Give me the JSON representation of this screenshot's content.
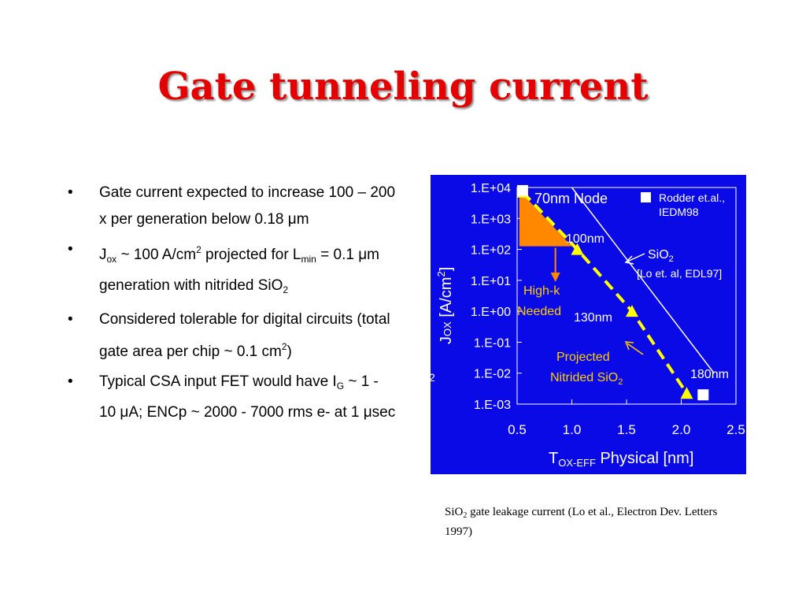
{
  "slide": {
    "title": "Gate tunneling current"
  },
  "bullets": [
    {
      "text_a": "Gate current expected to increase 100 – 200 x per generation below 0.18 ",
      "mu": "μ",
      "text_b": "m"
    },
    {
      "a": "J",
      "sub1": "ox",
      "b": " ~ 100 A/cm",
      "sup1": "2",
      "c": " projected for L",
      "sub2": "min",
      "d": " = 0.1 ",
      "mu": "μ",
      "e": "m generation with nitrided SiO",
      "sub3": "2"
    },
    {
      "a": "Considered tolerable for digital circuits (total gate area per chip ~ 0.1 cm",
      "sup1": "2",
      "b": ")"
    },
    {
      "a": "Typical CSA input FET would have I",
      "sub1": "G",
      "b": " ~ 1 - 10 ",
      "mu1": "μ",
      "c": "A; ENCp ~ 2000 - 7000 rms e- at 1 ",
      "mu2": "μ",
      "d": "sec"
    }
  ],
  "bullet_symbol": "•",
  "caption": {
    "a": "SiO",
    "sub": "2",
    "b": " gate leakage current (Lo et al., Electron Dev. Letters 1997)"
  },
  "chart_data": {
    "type": "line",
    "colors": {
      "background": "#0a0ae6",
      "text": "#ffffff",
      "yellow": "#ffff00",
      "orange": "#ff8800",
      "annotation": "#ffcc00"
    },
    "x_ticks": [
      "0.5",
      "1.0",
      "1.5",
      "2.0",
      "2.5"
    ],
    "y_ticks": [
      "1.E-03",
      "1.E-02",
      "1.E-01",
      "1.E+00",
      "1.E+01",
      "1.E+02",
      "1.E+03",
      "1.E+04"
    ],
    "xlim": [
      0.5,
      2.5
    ],
    "ylim_log10": [
      -3,
      4
    ],
    "xlabel": {
      "main": "T",
      "sub": "OX-EFF",
      "rest": " Physical  [nm]"
    },
    "ylabel": {
      "main": "J",
      "sub": "OX",
      "rest": " [A/cm",
      "sup": "2",
      "end": "]"
    },
    "series": [
      {
        "name": "SiO2 [Lo et. al, EDL97]",
        "x": [
          1.0,
          2.3
        ],
        "log10y": [
          4,
          -2
        ]
      },
      {
        "name": "Projected Nitrided SiO2",
        "x": [
          0.55,
          1.05,
          1.55,
          2.05
        ],
        "log10y": [
          3.85,
          2.0,
          0.0,
          -2.65
        ]
      },
      {
        "name": "Rodder et.al., IEDM98",
        "x": [
          0.55,
          2.2
        ],
        "log10y": [
          3.9,
          -2.7
        ]
      }
    ],
    "legend": {
      "marker_label_1": "Rodder et.al.,",
      "marker_label_2": "IEDM98"
    },
    "annotations": {
      "node70": "70nm Node",
      "node100": "100nm",
      "node130": "130nm",
      "node180": "180nm",
      "sio2": "SiO",
      "sio2_sub": "2",
      "lo": "[Lo et. al, EDL97]",
      "highk1": "High-k",
      "highk2": "Needed",
      "proj1": "Projected",
      "proj2": "Nitrided SiO",
      "proj2_sub": "2",
      "edge": "2"
    }
  }
}
